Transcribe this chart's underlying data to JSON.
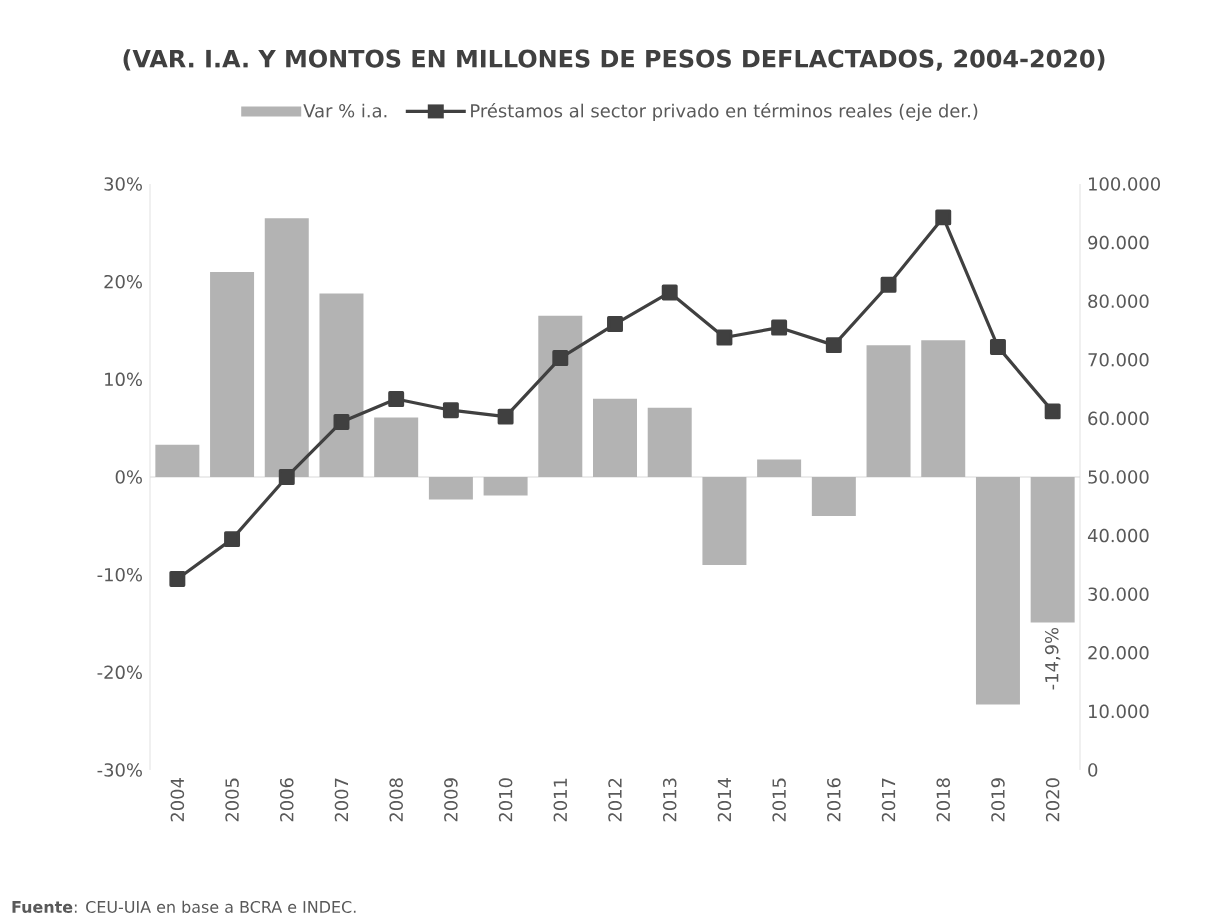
{
  "chart_data": {
    "type": "bar",
    "title": "(VAR. I.A. Y MONTOS EN MILLONES DE PESOS DEFLACTADOS, 2004-2020)",
    "categories": [
      "2004",
      "2005",
      "2006",
      "2007",
      "2008",
      "2009",
      "2010",
      "2011",
      "2012",
      "2013",
      "2014",
      "2015",
      "2016",
      "2017",
      "2018",
      "2019",
      "2020"
    ],
    "series": [
      {
        "name": "Var % i.a.",
        "color": "#b3b3b3",
        "values": [
          3.3,
          21,
          26.5,
          18.8,
          6.1,
          -2.3,
          -1.9,
          16.5,
          8,
          7.1,
          -9,
          1.8,
          -4,
          13.5,
          14,
          -23.3,
          -14.9
        ],
        "value_labels": [
          null,
          null,
          null,
          null,
          null,
          null,
          null,
          null,
          null,
          null,
          null,
          null,
          null,
          null,
          null,
          null,
          "-14,9%"
        ]
      },
      {
        "name": "Préstamos al sector privado en términos reales (eje der.)",
        "type": "line",
        "axis": "y2",
        "color": "#404040",
        "values": [
          32600,
          39400,
          50000,
          59400,
          63300,
          61400,
          60300,
          70300,
          76100,
          81500,
          73800,
          75500,
          72500,
          82800,
          94300,
          72200,
          61200
        ]
      }
    ],
    "ylim": [
      -30,
      30
    ],
    "yticks": [
      {
        "value": -30,
        "label": "-30%"
      },
      {
        "value": -20,
        "label": "-20%"
      },
      {
        "value": -10,
        "label": "-10%"
      },
      {
        "value": 0,
        "label": "0%"
      },
      {
        "value": 10,
        "label": "10%"
      },
      {
        "value": 20,
        "label": "20%"
      },
      {
        "value": 30,
        "label": "30%"
      }
    ],
    "y2lim": [
      0,
      100000
    ],
    "y2ticks": [
      0,
      {
        "value": 10000,
        "label": "10.000"
      },
      {
        "value": 20000,
        "label": "20.000"
      },
      {
        "value": 30000,
        "label": "30.000"
      },
      {
        "value": 40000,
        "label": "40.000"
      },
      {
        "value": 50000,
        "label": "50.000"
      },
      {
        "value": 60000,
        "label": "60.000"
      },
      {
        "value": 70000,
        "label": "70.000"
      },
      {
        "value": 80000,
        "label": "80.000"
      },
      {
        "value": 90000,
        "label": "90.000"
      },
      {
        "value": 100000,
        "label": "100.000"
      }
    ],
    "legend": "top",
    "marker": "square",
    "line_style": "solid",
    "annotations": [
      "**Fuente**: CEU-UIA en base a BCRA e INDEC."
    ]
  }
}
